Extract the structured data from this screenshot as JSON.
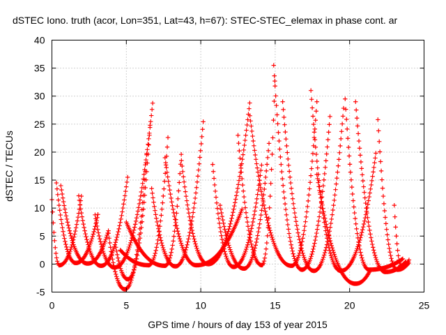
{
  "chart_data": {
    "type": "scatter",
    "title": "dSTEC Iono. truth (acor, Lon=351, Lat=43, h=67): STEC-STEC_elemax in phase cont. ar",
    "xlabel": "GPS time / hours of day 153 of year 2015",
    "ylabel": "dSTEC  / TECUs",
    "xlim": [
      0,
      25
    ],
    "ylim": [
      -5,
      40
    ],
    "xticks": [
      "0",
      "5",
      "10",
      "15",
      "20",
      "25"
    ],
    "yticks": [
      "-5",
      "0",
      "5",
      "10",
      "15",
      "20",
      "25",
      "30",
      "35",
      "40"
    ],
    "grid": true,
    "marker": "+",
    "color": "#ff0000",
    "passes": [
      {
        "start": 0.0,
        "min_t": 0.5,
        "min_v": -0.2,
        "end": 2.0,
        "end_v": 12.5,
        "start_v": 11.5
      },
      {
        "start": 0.3,
        "min_t": 1.6,
        "min_v": 0.2,
        "end": 3.1,
        "end_v": 9.0,
        "start_v": 14.5
      },
      {
        "start": 0.6,
        "min_t": 2.4,
        "min_v": 0.1,
        "end": 3.8,
        "end_v": 6.0,
        "start_v": 14.0
      },
      {
        "start": 1.8,
        "min_t": 3.3,
        "min_v": -0.3,
        "end": 5.1,
        "end_v": 15.8,
        "start_v": 12.2
      },
      {
        "start": 2.9,
        "min_t": 4.2,
        "min_v": -0.6,
        "end": 6.8,
        "end_v": 29.5,
        "start_v": 8.8
      },
      {
        "start": 3.8,
        "min_t": 4.9,
        "min_v": -4.5,
        "end": 6.4,
        "end_v": 21.0,
        "start_v": 5.5
      },
      {
        "start": 4.3,
        "min_t": 5.1,
        "min_v": -2.7,
        "end": 6.6,
        "end_v": 25.0,
        "start_v": 3.0
      },
      {
        "start": 4.6,
        "min_t": 6.5,
        "min_v": -0.2,
        "end": 7.8,
        "end_v": 22.8,
        "start_v": 2.5
      },
      {
        "start": 5.0,
        "min_t": 7.6,
        "min_v": -0.3,
        "end": 8.7,
        "end_v": 20.0,
        "start_v": 7.5
      },
      {
        "start": 6.7,
        "min_t": 8.3,
        "min_v": -0.4,
        "end": 10.2,
        "end_v": 26.5,
        "start_v": 13.5
      },
      {
        "start": 7.6,
        "min_t": 9.7,
        "min_v": -0.2,
        "end": 12.8,
        "end_v": 10.0,
        "start_v": 19.0
      },
      {
        "start": 8.7,
        "min_t": 10.5,
        "min_v": 0.0,
        "end": 13.3,
        "end_v": 29.0,
        "start_v": 18.5
      },
      {
        "start": 10.8,
        "min_t": 12.2,
        "min_v": -0.5,
        "end": 14.1,
        "end_v": 18.0,
        "start_v": 17.8
      },
      {
        "start": 11.3,
        "min_t": 12.9,
        "min_v": -0.8,
        "end": 14.6,
        "end_v": 22.0,
        "start_v": 10.5
      },
      {
        "start": 12.5,
        "min_t": 14.1,
        "min_v": -0.2,
        "end": 15.0,
        "end_v": 34.8,
        "start_v": 23.0
      },
      {
        "start": 13.3,
        "min_t": 16.1,
        "min_v": -0.3,
        "end": 17.8,
        "end_v": 29.0,
        "start_v": 26.5
      },
      {
        "start": 14.9,
        "min_t": 16.8,
        "min_v": -1.0,
        "end": 18.7,
        "end_v": 27.0,
        "start_v": 35.5
      },
      {
        "start": 15.5,
        "min_t": 17.6,
        "min_v": -1.2,
        "end": 19.6,
        "end_v": 28.0,
        "start_v": 29.0
      },
      {
        "start": 17.4,
        "min_t": 19.4,
        "min_v": -1.2,
        "end": 21.8,
        "end_v": 20.5,
        "start_v": 31.0
      },
      {
        "start": 17.8,
        "min_t": 20.4,
        "min_v": -3.5,
        "end": 21.4,
        "end_v": -1.0,
        "start_v": 16.0
      },
      {
        "start": 19.7,
        "min_t": 21.3,
        "min_v": -1.0,
        "end": 23.6,
        "end_v": 1.0,
        "start_v": 29.5
      },
      {
        "start": 20.4,
        "min_t": 22.4,
        "min_v": -1.4,
        "end": 23.8,
        "end_v": 0.5,
        "start_v": 29.0
      },
      {
        "start": 21.9,
        "min_t": 23.2,
        "min_v": -1.0,
        "end": 24.0,
        "end_v": 0.3,
        "start_v": 25.8
      },
      {
        "start": 23.0,
        "min_t": 23.5,
        "min_v": -0.5,
        "end": 24.0,
        "end_v": 0.8,
        "start_v": 10.5
      }
    ]
  }
}
